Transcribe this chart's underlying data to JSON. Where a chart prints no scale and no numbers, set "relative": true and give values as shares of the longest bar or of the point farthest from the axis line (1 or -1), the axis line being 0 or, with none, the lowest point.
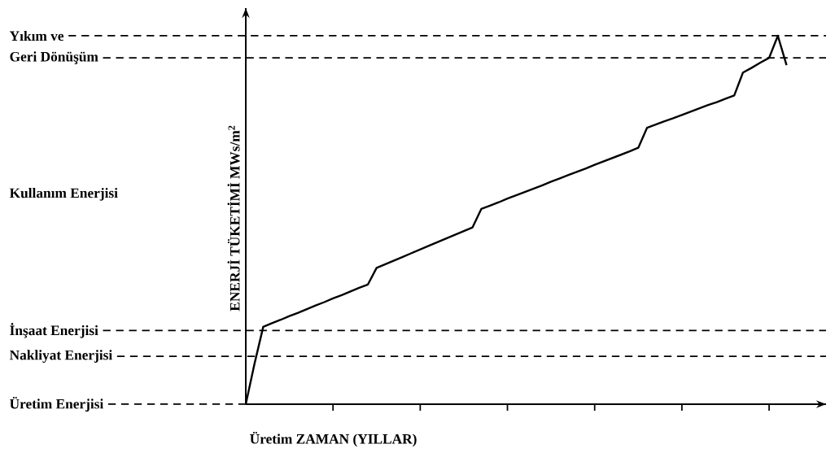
{
  "chart_data": {
    "type": "line",
    "relative": true,
    "xlabel": "Üretim ZAMAN (YILLAR)",
    "ylabel": "ENERJİ TÜKETİMİ MWs/m$^{2}$",
    "categories": [
      null,
      null,
      null,
      null,
      null,
      null,
      null,
      null,
      null,
      null,
      null,
      null,
      null,
      null,
      null,
      null,
      null,
      null,
      null,
      null,
      null,
      null,
      null,
      null,
      null,
      null,
      null,
      null,
      null,
      null,
      null,
      null,
      null,
      null,
      null,
      null,
      null,
      null,
      null,
      null,
      null,
      null,
      null,
      null,
      null,
      null,
      null,
      null,
      null,
      null,
      null,
      null,
      null,
      null,
      null,
      null,
      null,
      null,
      null,
      null,
      null,
      null,
      null
    ],
    "values": [
      0,
      0.11,
      0.21,
      0.22,
      0.229,
      0.239,
      0.248,
      0.258,
      0.268,
      0.277,
      0.287,
      0.296,
      0.306,
      0.316,
      0.325,
      0.37,
      0.38,
      0.39,
      0.4,
      0.41,
      0.42,
      0.43,
      0.44,
      0.45,
      0.46,
      0.47,
      0.48,
      0.53,
      0.539,
      0.548,
      0.558,
      0.567,
      0.576,
      0.585,
      0.594,
      0.604,
      0.613,
      0.622,
      0.631,
      0.64,
      0.65,
      0.659,
      0.668,
      0.677,
      0.686,
      0.696,
      0.75,
      0.759,
      0.768,
      0.776,
      0.785,
      0.794,
      0.803,
      0.812,
      0.82,
      0.829,
      0.838,
      0.9,
      0.913,
      0.927,
      0.94,
      1,
      0.92
    ],
    "color": "#000000",
    "ref_lines": [
      {
        "axis": "y",
        "value": 1,
        "label": "Yıkım ve",
        "line_style": "dashed"
      },
      {
        "axis": "y",
        "value": 0.94,
        "label": "Geri Dönüşüm",
        "line_style": "dashed"
      },
      {
        "axis": "y",
        "value": 0.2,
        "label": "İnşaat Enerjisi",
        "line_style": "dashed"
      },
      {
        "axis": "y",
        "value": 0.13,
        "label": "Nakliyat Enerjisi",
        "line_style": "dashed"
      },
      {
        "axis": "y",
        "value": 0,
        "label": "Üretim Enerjisi",
        "line_style": "dashed"
      }
    ],
    "annotations": [
      "Kullanım Enerjisi"
    ]
  }
}
